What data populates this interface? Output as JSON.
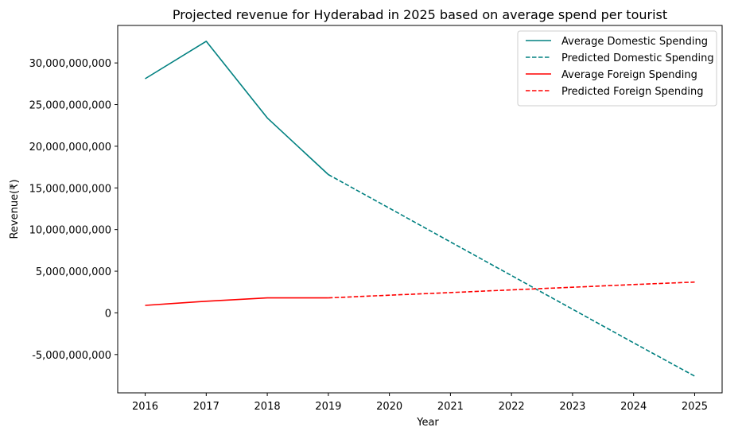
{
  "chart_data": {
    "type": "line",
    "title": "Projected revenue for Hyderabad in 2025 based on average spend per tourist",
    "xlabel": "Year",
    "ylabel": "Revenue(₹)",
    "xlim": [
      2015.55,
      2025.45
    ],
    "ylim": [
      -9600000000,
      34500000000
    ],
    "x_ticks": [
      2016,
      2017,
      2018,
      2019,
      2020,
      2021,
      2022,
      2023,
      2024,
      2025
    ],
    "y_ticks": [
      -5000000000,
      0,
      5000000000,
      10000000000,
      15000000000,
      20000000000,
      25000000000,
      30000000000
    ],
    "y_tick_labels": [
      "-5,000,000,000",
      "0",
      "5,000,000,000",
      "10,000,000,000",
      "15,000,000,000",
      "20,000,000,000",
      "25,000,000,000",
      "30,000,000,000"
    ],
    "grid": false,
    "legend_position": "top-right",
    "series": [
      {
        "name": "Average Domestic Spending",
        "color": "#008080",
        "style": "solid",
        "x": [
          2016,
          2017,
          2018,
          2019
        ],
        "y": [
          28100000000,
          32600000000,
          23400000000,
          16600000000
        ]
      },
      {
        "name": "Predicted Domestic Spending",
        "color": "#008080",
        "style": "dashed",
        "x": [
          2019,
          2020,
          2021,
          2022,
          2023,
          2024,
          2025
        ],
        "y": [
          16600000000,
          12560000000,
          8520000000,
          4480000000,
          440000000,
          -3600000000,
          -7600000000
        ]
      },
      {
        "name": "Average Foreign Spending",
        "color": "#ff0000",
        "style": "solid",
        "x": [
          2016,
          2017,
          2018,
          2019
        ],
        "y": [
          900000000,
          1400000000,
          1800000000,
          1800000000
        ]
      },
      {
        "name": "Predicted Foreign Spending",
        "color": "#ff0000",
        "style": "dashed",
        "x": [
          2019,
          2020,
          2021,
          2022,
          2023,
          2024,
          2025
        ],
        "y": [
          1800000000,
          2120000000,
          2440000000,
          2760000000,
          3080000000,
          3400000000,
          3700000000
        ]
      }
    ]
  }
}
